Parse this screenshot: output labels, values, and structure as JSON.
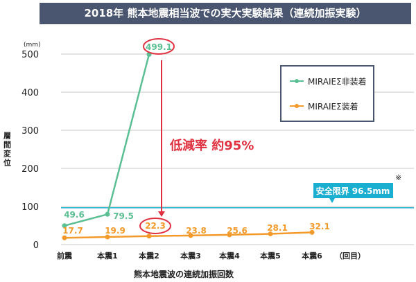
{
  "chart_data": {
    "type": "line",
    "title": "2018年 熊本地震相当波での実大実験結果（連続加振実験）",
    "xlabel": "熊本地震波の連続加振回数",
    "ylabel": "層間変位",
    "yunit": "(mm)",
    "xunit": "（回目）",
    "categories": [
      "前震",
      "本震1",
      "本震2",
      "本震3",
      "本震4",
      "本震5",
      "本震6"
    ],
    "ylim": [
      0,
      500
    ],
    "yticks": [
      0,
      100,
      200,
      300,
      400,
      500
    ],
    "grid": true,
    "legend_position": "top-right",
    "series": [
      {
        "name": "MIRAIEΣ非装着",
        "color": "#5bbf94",
        "values": [
          49.6,
          79.5,
          499.1,
          null,
          null,
          null,
          null
        ],
        "labels": [
          "49.6",
          "79.5",
          "499.1"
        ]
      },
      {
        "name": "MIRAIEΣ装着",
        "color": "#f39a2a",
        "values": [
          17.7,
          19.9,
          22.3,
          23.8,
          25.6,
          28.1,
          32.1
        ],
        "labels": [
          "17.7",
          "19.9",
          "22.3",
          "23.8",
          "25.6",
          "28.1",
          "32.1"
        ]
      }
    ],
    "reference_line": {
      "value": 96.5,
      "label": "安全限界 96.5mm",
      "color": "#1aaed1"
    },
    "annotation": {
      "text": "低減率 約95%",
      "color": "#e03040"
    },
    "footnote_mark": "※"
  }
}
